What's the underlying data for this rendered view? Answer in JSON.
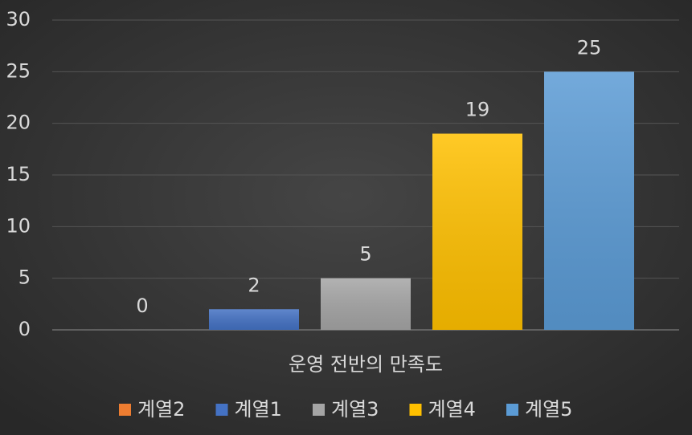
{
  "chart_data": {
    "type": "bar",
    "categories": [
      "운영 전반의 만족도"
    ],
    "series": [
      {
        "name": "계열2",
        "color": "#ed7d31",
        "values": [
          0
        ]
      },
      {
        "name": "계열1",
        "color": "#4472c4",
        "values": [
          2
        ]
      },
      {
        "name": "계열3",
        "color": "#a5a5a5",
        "values": [
          5
        ]
      },
      {
        "name": "계열4",
        "color": "#ffc000",
        "values": [
          19
        ]
      },
      {
        "name": "계열5",
        "color": "#5b9bd5",
        "values": [
          25
        ]
      }
    ],
    "ylim": [
      0,
      30
    ],
    "yticks": [
      0,
      5,
      10,
      15,
      20,
      25,
      30
    ],
    "grid": true,
    "legend": "bottom"
  }
}
